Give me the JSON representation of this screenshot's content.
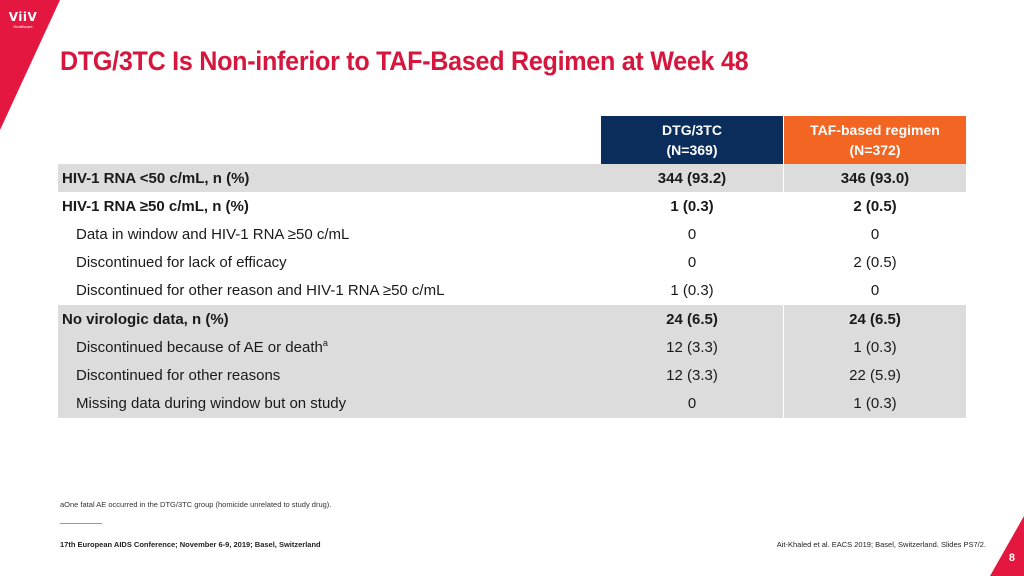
{
  "logo": {
    "mark": "ViiV",
    "sub": "Healthcare"
  },
  "title": "DTG/3TC Is Non-inferior to TAF-Based Regimen at Week 48",
  "table": {
    "columns": [
      {
        "line1": "DTG/3TC",
        "line2": "(N=369)"
      },
      {
        "line1": "TAF-based regimen",
        "line2": "(N=372)"
      }
    ],
    "rows": [
      {
        "label": "HIV-1 RNA <50 c/mL, n (%)",
        "v1": "344 (93.2)",
        "v2": "346 (93.0)"
      },
      {
        "label": "HIV-1 RNA ≥50 c/mL, n (%)",
        "v1": "1 (0.3)",
        "v2": "2 (0.5)"
      },
      {
        "label": "Data in window and HIV-1 RNA ≥50 c/mL",
        "v1": "0",
        "v2": "0"
      },
      {
        "label": "Discontinued for lack of efficacy",
        "v1": "0",
        "v2": "2 (0.5)"
      },
      {
        "label": "Discontinued for other reason and HIV-1 RNA ≥50 c/mL",
        "v1": "1 (0.3)",
        "v2": "0"
      },
      {
        "label": "No virologic data, n (%)",
        "v1": "24 (6.5)",
        "v2": "24 (6.5)"
      },
      {
        "label": "Discontinued because of AE or death",
        "sup": "a",
        "v1": "12 (3.3)",
        "v2": "1 (0.3)"
      },
      {
        "label": "Discontinued for other reasons",
        "v1": "12 (3.3)",
        "v2": "22 (5.9)"
      },
      {
        "label": "Missing data during window but on study",
        "v1": "0",
        "v2": "1 (0.3)"
      }
    ]
  },
  "footnote": "aOne fatal AE occurred in the DTG/3TC group (homicide unrelated to study drug).",
  "conference": "17th European AIDS Conference; November 6-9, 2019; Basel, Switzerland",
  "citation": "Ait-Khaled et al. EACS 2019; Basel, Switzerland. Slides PS7/2.",
  "page_number": "8",
  "colors": {
    "brand_red": "#d6163d",
    "navy": "#0a2d5c",
    "orange": "#f26522",
    "row_shade": "#dcdcdc"
  }
}
